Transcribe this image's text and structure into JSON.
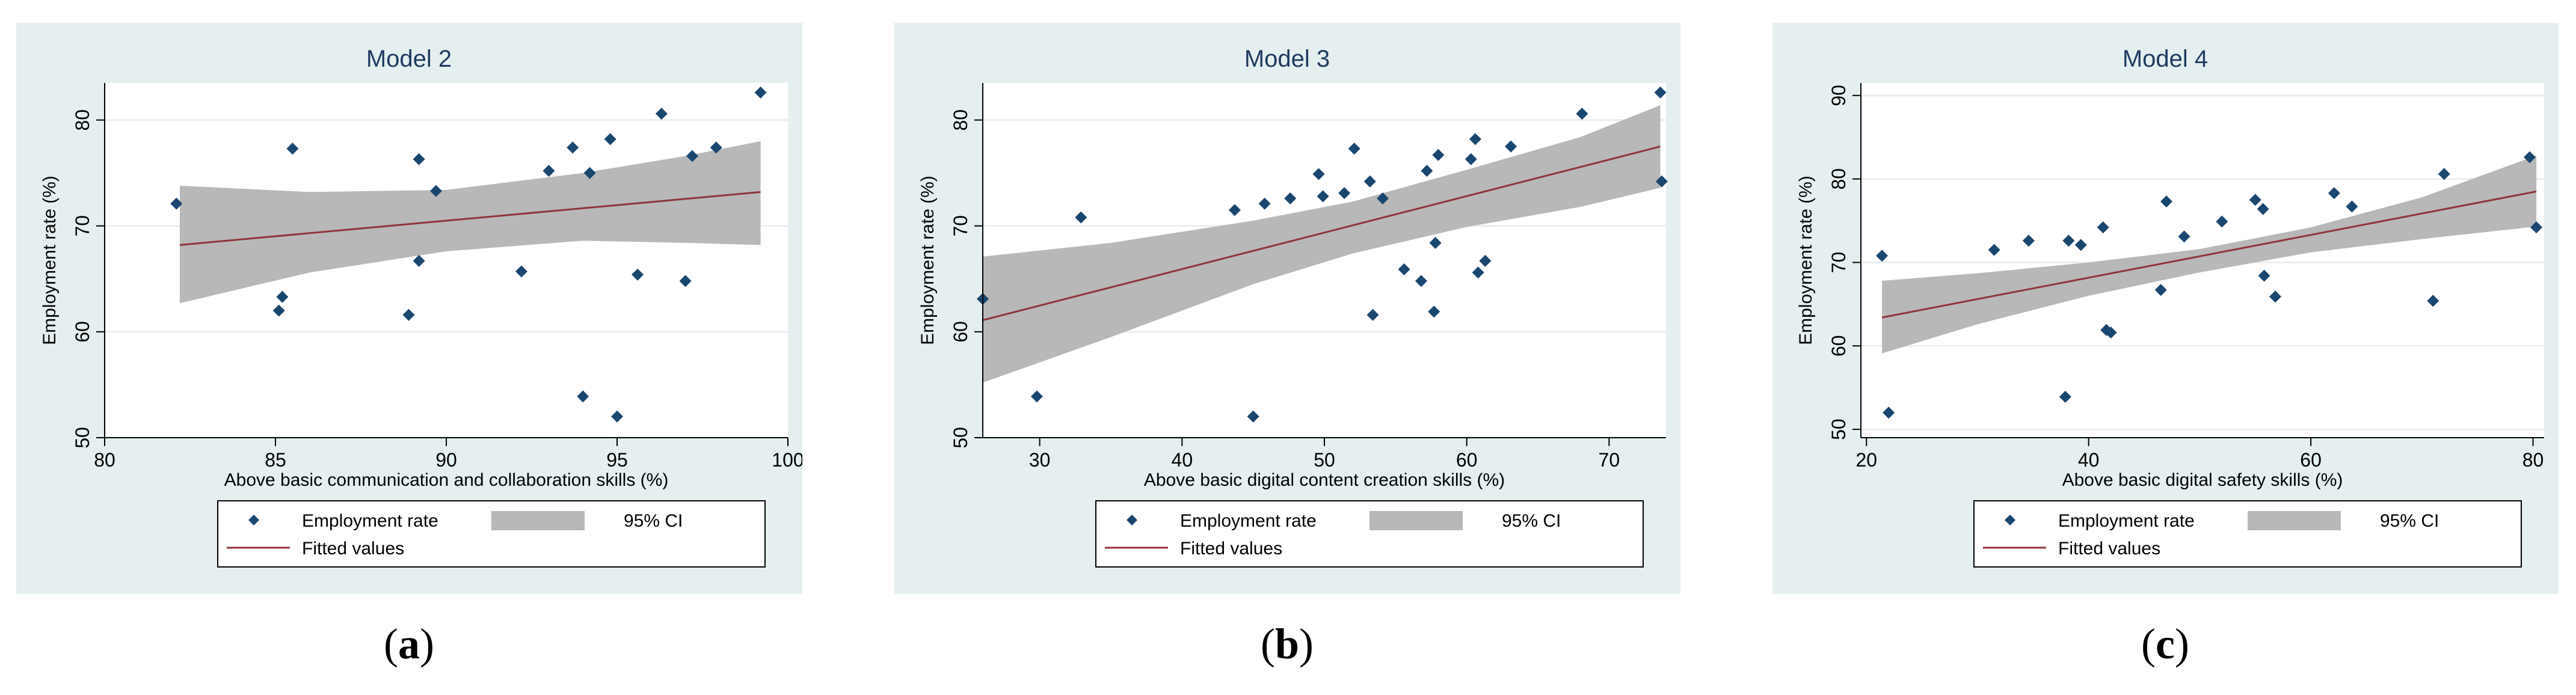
{
  "figure": {
    "panel_labels": [
      "a",
      "b",
      "c"
    ]
  },
  "chart_data": [
    {
      "type": "scatter",
      "title": "Model 2",
      "xlabel": "Above basic communication and collaboration skills (%)",
      "ylabel": "Employment rate (%)",
      "xlim": [
        80,
        100
      ],
      "ylim": [
        50,
        83.5
      ],
      "xticks": [
        80,
        85,
        90,
        95,
        100
      ],
      "yticks": [
        50,
        60,
        70,
        80
      ],
      "legend": {
        "scatter": "Employment rate",
        "ci": "95% CI",
        "fit": "Fitted values",
        "placement": "bottom"
      },
      "colors": {
        "points": "#1a476f",
        "fit": "#90353b",
        "ci": "#b8b8b8",
        "background": "#e5efef",
        "plot": "#ffffff"
      },
      "points": [
        {
          "x": 82.1,
          "y": 72.1
        },
        {
          "x": 85.1,
          "y": 62.0
        },
        {
          "x": 85.2,
          "y": 63.3
        },
        {
          "x": 85.5,
          "y": 77.3
        },
        {
          "x": 88.9,
          "y": 61.6
        },
        {
          "x": 89.2,
          "y": 66.7
        },
        {
          "x": 89.2,
          "y": 76.3
        },
        {
          "x": 89.7,
          "y": 73.3
        },
        {
          "x": 92.2,
          "y": 65.7
        },
        {
          "x": 93.0,
          "y": 75.2
        },
        {
          "x": 93.7,
          "y": 77.4
        },
        {
          "x": 94.0,
          "y": 53.9
        },
        {
          "x": 94.2,
          "y": 75.0
        },
        {
          "x": 94.8,
          "y": 78.2
        },
        {
          "x": 95.0,
          "y": 52.0
        },
        {
          "x": 95.6,
          "y": 65.4
        },
        {
          "x": 96.3,
          "y": 80.6
        },
        {
          "x": 97.0,
          "y": 64.8
        },
        {
          "x": 97.2,
          "y": 76.6
        },
        {
          "x": 97.9,
          "y": 77.4
        },
        {
          "x": 99.2,
          "y": 82.6
        }
      ],
      "fit": {
        "x": [
          82.2,
          99.2
        ],
        "y": [
          68.2,
          73.2
        ]
      },
      "ci": {
        "x": [
          82.2,
          86,
          90,
          94,
          97,
          99.2
        ],
        "lower": [
          62.7,
          65.6,
          67.6,
          68.6,
          68.4,
          68.2
        ],
        "upper": [
          73.8,
          73.2,
          73.4,
          75.0,
          76.6,
          78.0
        ]
      }
    },
    {
      "type": "scatter",
      "title": "Model 3",
      "xlabel": "Above basic digital content creation skills (%)",
      "ylabel": "Employment rate (%)",
      "xlim": [
        26,
        74
      ],
      "ylim": [
        50,
        83.5
      ],
      "xticks": [
        30,
        40,
        50,
        60,
        70
      ],
      "yticks": [
        50,
        60,
        70,
        80
      ],
      "legend": {
        "scatter": "Employment rate",
        "ci": "95% CI",
        "fit": "Fitted values",
        "placement": "bottom"
      },
      "colors": {
        "points": "#1a476f",
        "fit": "#90353b",
        "ci": "#b8b8b8",
        "background": "#e5efef",
        "plot": "#ffffff"
      },
      "points": [
        {
          "x": 26.0,
          "y": 63.1
        },
        {
          "x": 29.8,
          "y": 53.9
        },
        {
          "x": 32.9,
          "y": 70.8
        },
        {
          "x": 43.7,
          "y": 71.5
        },
        {
          "x": 45.0,
          "y": 52.0
        },
        {
          "x": 45.8,
          "y": 72.1
        },
        {
          "x": 47.6,
          "y": 72.6
        },
        {
          "x": 49.6,
          "y": 74.9
        },
        {
          "x": 49.9,
          "y": 72.8
        },
        {
          "x": 51.4,
          "y": 73.1
        },
        {
          "x": 52.1,
          "y": 77.3
        },
        {
          "x": 53.2,
          "y": 74.2
        },
        {
          "x": 53.4,
          "y": 61.6
        },
        {
          "x": 54.1,
          "y": 72.6
        },
        {
          "x": 55.6,
          "y": 65.9
        },
        {
          "x": 56.8,
          "y": 64.8
        },
        {
          "x": 57.2,
          "y": 75.2
        },
        {
          "x": 57.7,
          "y": 61.9
        },
        {
          "x": 57.8,
          "y": 68.4
        },
        {
          "x": 58.0,
          "y": 76.7
        },
        {
          "x": 60.3,
          "y": 76.3
        },
        {
          "x": 60.6,
          "y": 78.2
        },
        {
          "x": 60.8,
          "y": 65.6
        },
        {
          "x": 61.3,
          "y": 66.7
        },
        {
          "x": 63.1,
          "y": 77.5
        },
        {
          "x": 68.1,
          "y": 80.6
        },
        {
          "x": 73.6,
          "y": 82.6
        },
        {
          "x": 73.7,
          "y": 74.2
        }
      ],
      "fit": {
        "x": [
          26,
          73.6
        ],
        "y": [
          61.1,
          77.5
        ]
      },
      "ci": {
        "x": [
          26,
          35,
          45,
          52,
          60,
          68,
          73.6
        ],
        "lower": [
          55.2,
          59.5,
          64.5,
          67.4,
          69.9,
          71.8,
          73.6
        ],
        "upper": [
          67.1,
          68.4,
          70.5,
          72.3,
          75.3,
          78.4,
          81.4
        ]
      }
    },
    {
      "type": "scatter",
      "title": "Model 4",
      "xlabel": "Above basic digital safety skills (%)",
      "ylabel": "Employment rate (%)",
      "xlim": [
        19.5,
        81
      ],
      "ylim": [
        49,
        91.5
      ],
      "xticks": [
        20,
        40,
        60,
        80
      ],
      "yticks": [
        50,
        60,
        70,
        80,
        90
      ],
      "legend": {
        "scatter": "Employment rate",
        "ci": "95% CI",
        "fit": "Fitted values",
        "placement": "bottom"
      },
      "colors": {
        "points": "#1a476f",
        "fit": "#90353b",
        "ci": "#b8b8b8",
        "background": "#e5efef",
        "plot": "#ffffff"
      },
      "points": [
        {
          "x": 21.4,
          "y": 70.8
        },
        {
          "x": 22.0,
          "y": 52.0
        },
        {
          "x": 31.5,
          "y": 71.5
        },
        {
          "x": 34.6,
          "y": 72.6
        },
        {
          "x": 37.9,
          "y": 53.9
        },
        {
          "x": 38.2,
          "y": 72.6
        },
        {
          "x": 39.3,
          "y": 72.1
        },
        {
          "x": 41.3,
          "y": 74.2
        },
        {
          "x": 41.6,
          "y": 61.9
        },
        {
          "x": 42.0,
          "y": 61.6
        },
        {
          "x": 46.5,
          "y": 66.7
        },
        {
          "x": 47.0,
          "y": 77.3
        },
        {
          "x": 48.6,
          "y": 73.1
        },
        {
          "x": 52.0,
          "y": 74.9
        },
        {
          "x": 55.0,
          "y": 77.5
        },
        {
          "x": 55.7,
          "y": 76.4
        },
        {
          "x": 55.8,
          "y": 68.4
        },
        {
          "x": 56.8,
          "y": 65.9
        },
        {
          "x": 62.1,
          "y": 78.3
        },
        {
          "x": 63.7,
          "y": 76.7
        },
        {
          "x": 71.0,
          "y": 65.4
        },
        {
          "x": 72.0,
          "y": 80.6
        },
        {
          "x": 79.7,
          "y": 82.6
        },
        {
          "x": 80.3,
          "y": 74.2
        }
      ],
      "fit": {
        "x": [
          21.4,
          80.3
        ],
        "y": [
          63.4,
          78.5
        ]
      },
      "ci": {
        "x": [
          21.4,
          30,
          40,
          50,
          60,
          70,
          80.3
        ],
        "lower": [
          59.1,
          62.6,
          66.0,
          68.8,
          71.2,
          72.8,
          74.3
        ],
        "upper": [
          67.8,
          68.7,
          70.0,
          71.6,
          74.2,
          77.8,
          82.8
        ]
      }
    }
  ]
}
